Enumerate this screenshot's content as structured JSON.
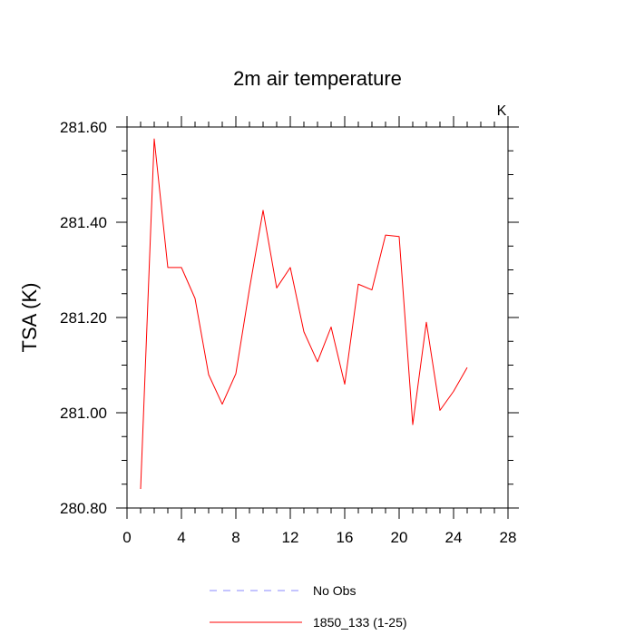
{
  "chart_data": {
    "type": "line",
    "title": "2m air temperature",
    "xlabel": "",
    "ylabel": "TSA  (K)",
    "units_label": "K",
    "xlim": [
      0,
      28
    ],
    "ylim": [
      280.8,
      281.6
    ],
    "x_ticks": [
      0,
      4,
      8,
      12,
      16,
      20,
      24,
      28
    ],
    "x_tick_labels": [
      "0",
      "4",
      "8",
      "12",
      "16",
      "20",
      "24",
      "28"
    ],
    "y_ticks": [
      280.8,
      281.0,
      281.2,
      281.4,
      281.6
    ],
    "y_tick_labels": [
      "280.80",
      "281.00",
      "281.20",
      "281.40",
      "281.60"
    ],
    "x_minor_step": 1,
    "y_minor_step": 0.05,
    "grid": false,
    "legend_position": "bottom",
    "series": [
      {
        "name": "1850_133 (1-25)",
        "color": "#ff0000",
        "style": "solid",
        "x": [
          1,
          2,
          3,
          4,
          5,
          6,
          7,
          8,
          9,
          10,
          11,
          12,
          13,
          14,
          15,
          16,
          17,
          18,
          19,
          20,
          21,
          22,
          23,
          24,
          25
        ],
        "y": [
          280.84,
          281.575,
          281.305,
          281.305,
          281.24,
          281.08,
          281.018,
          281.082,
          281.26,
          281.425,
          281.262,
          281.305,
          281.17,
          281.107,
          281.18,
          281.06,
          281.27,
          281.258,
          281.373,
          281.37,
          280.975,
          281.19,
          281.005,
          281.045,
          281.095
        ]
      }
    ],
    "legend": [
      {
        "label": "No Obs",
        "color": "#8888ff",
        "style": "dashed"
      },
      {
        "label": "1850_133 (1-25)",
        "color": "#ff0000",
        "style": "solid"
      }
    ]
  }
}
